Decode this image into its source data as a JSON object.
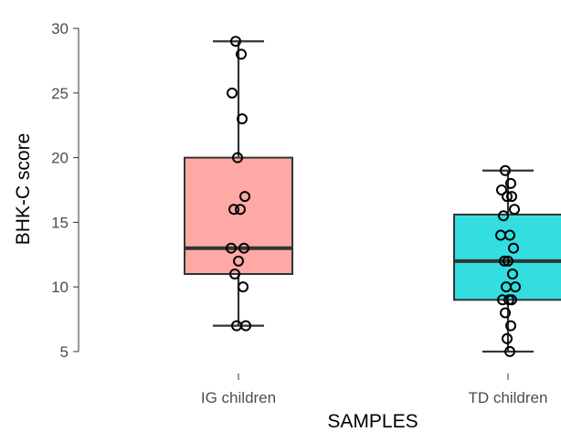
{
  "chart_data": {
    "type": "boxplot",
    "title": "",
    "xlabel": "SAMPLES",
    "ylabel": "BHK-C score",
    "ylim": [
      4.5,
      30.5
    ],
    "yticks": [
      5,
      10,
      15,
      20,
      25,
      30
    ],
    "grid": false,
    "legend": "none",
    "categories": [
      "IG children",
      "TD children"
    ],
    "series": [
      {
        "category": "IG children",
        "color": "#FFA9A6",
        "stats": {
          "min": 7,
          "q1": 11,
          "median": 13,
          "q3": 20,
          "max": 29
        },
        "points": [
          29,
          28,
          25,
          23,
          20,
          17,
          16,
          16,
          13,
          13,
          12,
          11,
          10,
          7,
          7
        ]
      },
      {
        "category": "TD children",
        "color": "#33DDE0",
        "stats": {
          "min": 5,
          "q1": 9,
          "median": 12,
          "q3": 15.6,
          "max": 19
        },
        "points": [
          19,
          18,
          17.5,
          17,
          17,
          16,
          15.5,
          14,
          14,
          13,
          12,
          12,
          11,
          10,
          10,
          9,
          9,
          9,
          8,
          7,
          6,
          5
        ]
      }
    ]
  }
}
